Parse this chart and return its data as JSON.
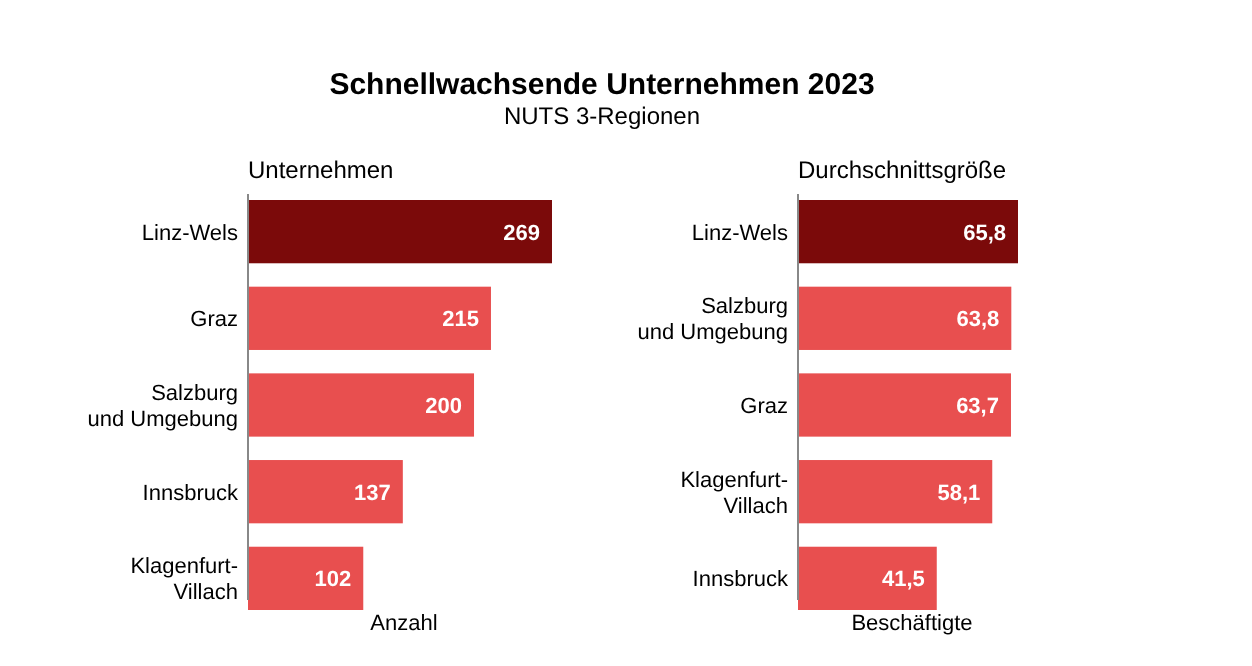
{
  "chart_data": [
    {
      "type": "bar",
      "orientation": "horizontal",
      "title": "Schnellwachsende Unternehmen 2023",
      "subtitle": "NUTS 3-Regionen",
      "ylabel": "Unternehmen",
      "xlabel": "Anzahl",
      "categories": [
        "Linz-Wels",
        "Graz",
        "Salzburg\nund Umgebung",
        "Innsbruck",
        "Klagenfurt-\nVillach"
      ],
      "values": [
        269,
        215,
        200,
        137,
        102
      ],
      "colors": [
        "#7b0a0a",
        "#e84f4f",
        "#e84f4f",
        "#e84f4f",
        "#e84f4f"
      ],
      "data_labels": true,
      "tick_labels": "y"
    },
    {
      "type": "bar",
      "orientation": "horizontal",
      "ylabel": "Durchschnittsgröße",
      "xlabel": "Beschäftigte",
      "categories": [
        "Linz-Wels",
        "Salzburg\nund Umgebung",
        "Graz",
        "Klagenfurt-\nVillach",
        "Innsbruck"
      ],
      "values": [
        65.8,
        63.8,
        63.7,
        58.1,
        41.5
      ],
      "value_labels": [
        "65,8",
        "63,8",
        "63,7",
        "58,1",
        "41,5"
      ],
      "colors": [
        "#7b0a0a",
        "#e84f4f",
        "#e84f4f",
        "#e84f4f",
        "#e84f4f"
      ],
      "tick_labels": "y"
    }
  ]
}
